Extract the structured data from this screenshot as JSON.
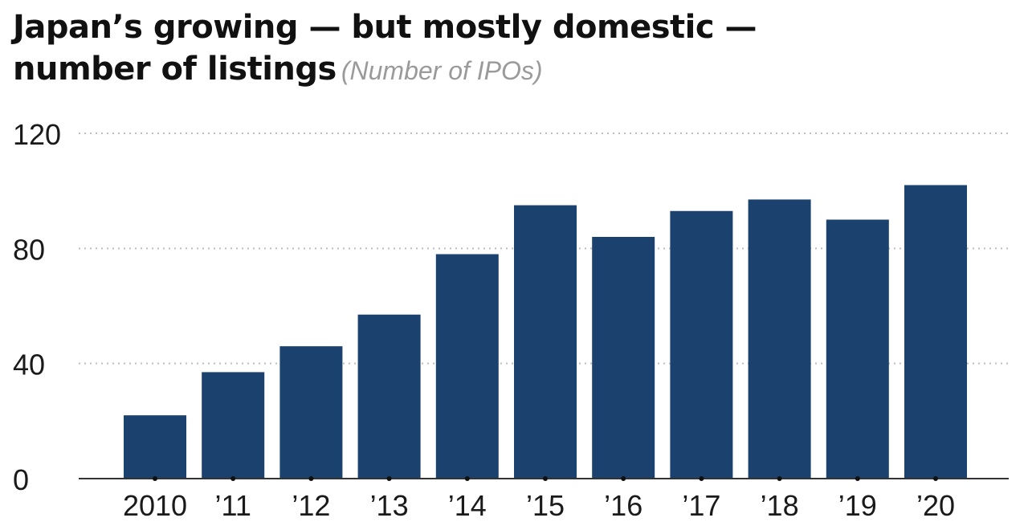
{
  "chart_data": {
    "type": "bar",
    "title_line1": "Japan’s growing — but mostly domestic —",
    "title_line2": "number of listings",
    "subtitle": "(Number of IPOs)",
    "categories": [
      "2010",
      "’11",
      "’12",
      "’13",
      "’14",
      "’15",
      "’16",
      "’17",
      "’18",
      "’19",
      "’20"
    ],
    "values": [
      22,
      37,
      46,
      57,
      78,
      95,
      84,
      93,
      97,
      90,
      102
    ],
    "ylim": [
      0,
      120
    ],
    "yticks": [
      0,
      40,
      80,
      120
    ],
    "ytick_labels": [
      "0",
      "40",
      "80",
      "120"
    ],
    "xlabel": "",
    "ylabel": "",
    "grid": true,
    "colors": {
      "bar": "#1b416f",
      "grid": "#bdbdbd",
      "axis": "#333333",
      "text": "#1a1a1a"
    }
  }
}
